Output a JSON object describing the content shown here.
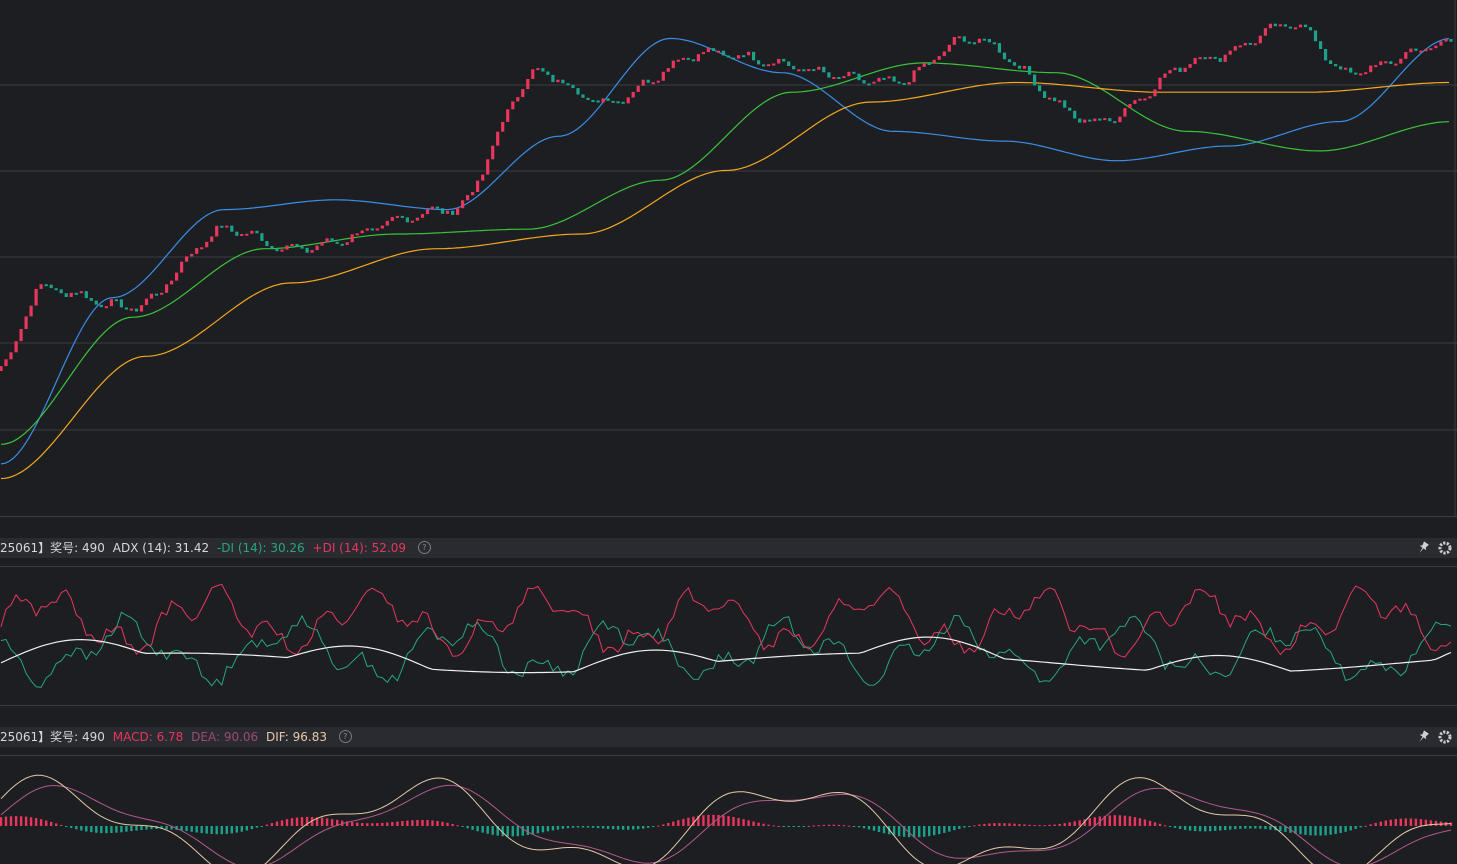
{
  "colors": {
    "background": "#1d1e22",
    "up": "#e8365c",
    "down": "#1aa38b",
    "ma_short": "#3a8ee6",
    "ma_mid": "#3bc23b",
    "ma_long": "#f2a81d",
    "plus_di": "#e8365c",
    "minus_di": "#26a67f",
    "adx": "#f0f0f0",
    "dif": "#e5c9a8",
    "dea": "#b05a8a",
    "grid": "#3b3c42"
  },
  "adx_header": {
    "prefix": "25061】奖号: 490",
    "adx_label": "ADX (14): 31.42",
    "minus_di_label": "-DI (14): 30.26",
    "plus_di_label": "+DI (14): 52.09",
    "help": "?"
  },
  "macd_header": {
    "prefix": "25061】奖号: 490",
    "macd_label": "MACD: 6.78",
    "dea_label": "DEA: 90.06",
    "dif_label": "DIF: 96.83",
    "help": "?"
  },
  "icons": {
    "pin": "pin-icon",
    "settings": "gear-icon",
    "help": "help-icon"
  },
  "chart_data": [
    {
      "type": "candlestick",
      "pane": "main",
      "points": 290,
      "y_range": [
        0,
        100
      ],
      "grid": true,
      "series": [
        {
          "values": [
            8,
            42,
            60,
            62,
            60,
            75,
            95,
            88,
            76,
            74,
            70,
            73,
            78,
            95
          ]
        },
        {
          "values": [
            12,
            38,
            52,
            55,
            56,
            66,
            84,
            90,
            88,
            76,
            72,
            78
          ]
        },
        {
          "values": [
            5,
            30,
            45,
            52,
            55,
            68,
            82,
            86,
            84,
            84,
            86
          ]
        }
      ],
      "trend_anchors": [
        [
          0,
          28
        ],
        [
          8,
          44
        ],
        [
          26,
          40
        ],
        [
          45,
          56
        ],
        [
          58,
          52
        ],
        [
          90,
          60
        ],
        [
          107,
          88
        ],
        [
          120,
          82
        ],
        [
          140,
          92
        ],
        [
          178,
          86
        ],
        [
          193,
          95
        ],
        [
          218,
          78
        ],
        [
          240,
          91
        ],
        [
          258,
          98
        ],
        [
          268,
          88
        ],
        [
          289,
          94
        ]
      ]
    },
    {
      "type": "line",
      "pane": "adx",
      "y_range": [
        0,
        100
      ],
      "series": [
        {
          "values": [
            30.26
          ]
        },
        {
          "values": [
            52.09
          ]
        },
        {
          "values": [
            31.42
          ]
        }
      ]
    },
    {
      "type": "bar",
      "pane": "macd",
      "series": [
        {
          "values": [
            6.78
          ]
        },
        {
          "values": [
            90.06
          ]
        },
        {
          "values": [
            96.83
          ]
        }
      ]
    }
  ]
}
